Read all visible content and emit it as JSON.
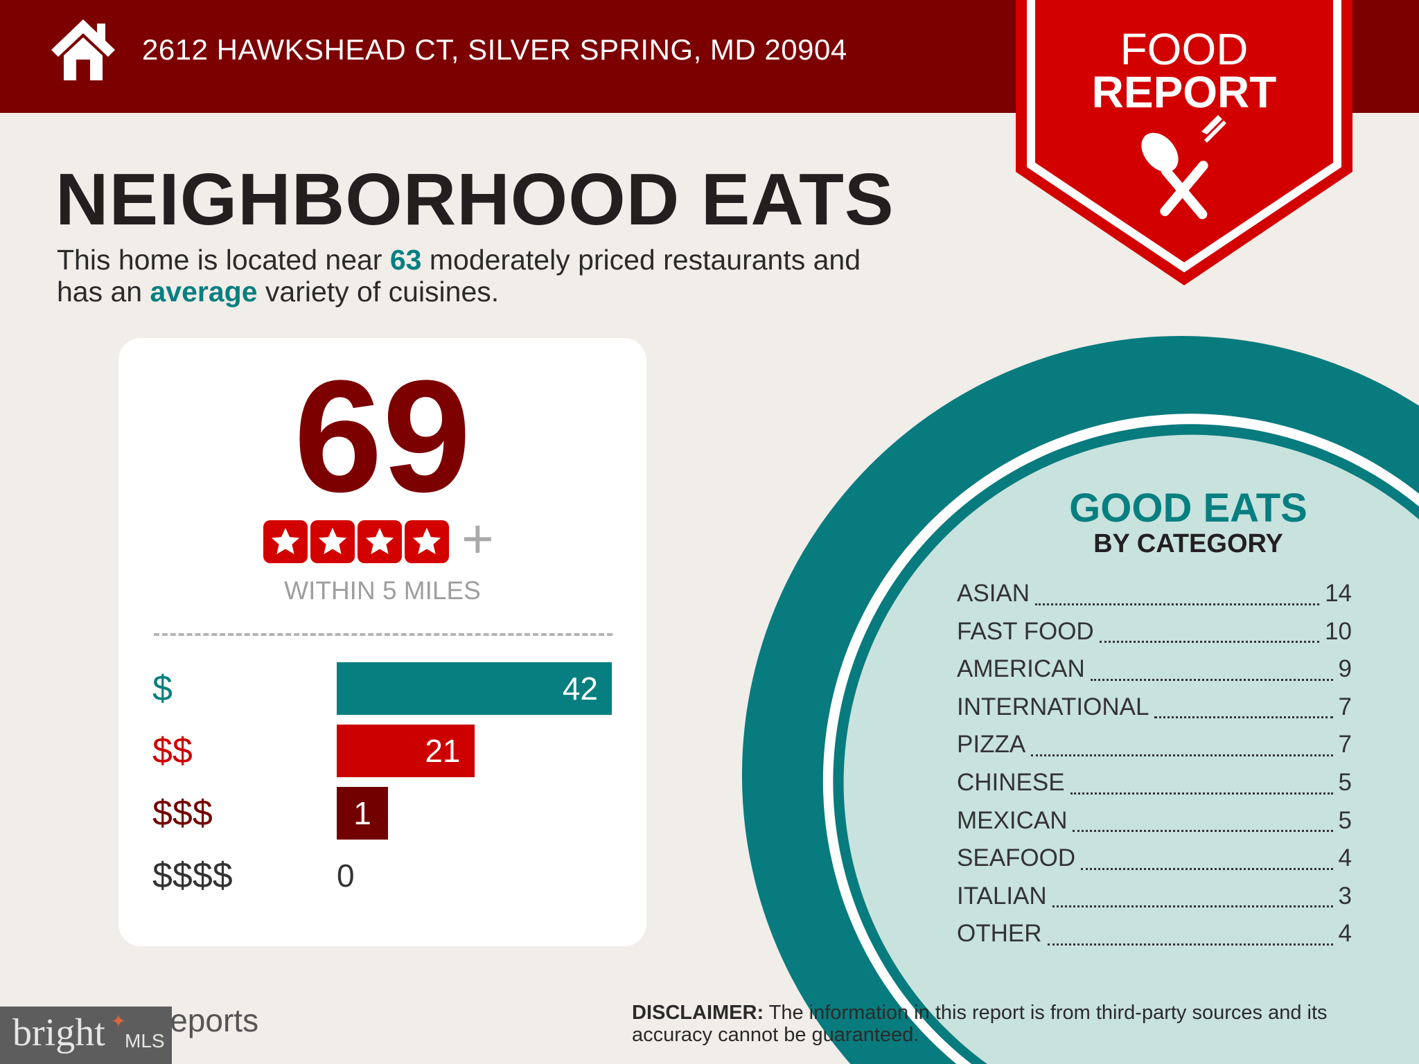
{
  "header": {
    "address": "2612 HAWKSHEAD CT, SILVER SPRING, MD 20904",
    "icon": "house-icon"
  },
  "banner": {
    "line1": "FOOD",
    "line2": "REPORT",
    "icon": "spoon-fork-icon"
  },
  "title": "NEIGHBORHOOD EATS",
  "subtitle": {
    "part1": "This home is located near ",
    "count": "63",
    "part2": " moderately priced restaurants and",
    "part3": "has an ",
    "variety": "average",
    "part4": " variety of cuisines."
  },
  "score": {
    "value": "69",
    "stars": 4,
    "plus": "+",
    "within": "WITHIN 5 MILES"
  },
  "price_levels": [
    {
      "label": "$",
      "value": 42,
      "color": "#077f80"
    },
    {
      "label": "$$",
      "value": 21,
      "color": "#cc0000"
    },
    {
      "label": "$$$",
      "value": 1,
      "color": "#730000"
    },
    {
      "label": "$$$$",
      "value": 0,
      "color": "#333333"
    }
  ],
  "categories": {
    "title": "GOOD EATS",
    "subtitle": "BY CATEGORY",
    "items": [
      {
        "name": "ASIAN",
        "count": "14"
      },
      {
        "name": "FAST FOOD",
        "count": "10"
      },
      {
        "name": "AMERICAN",
        "count": "9"
      },
      {
        "name": "INTERNATIONAL",
        "count": "7"
      },
      {
        "name": "PIZZA",
        "count": "7"
      },
      {
        "name": "CHINESE",
        "count": "5"
      },
      {
        "name": "MEXICAN",
        "count": "5"
      },
      {
        "name": "SEAFOOD",
        "count": "4"
      },
      {
        "name": "ITALIAN",
        "count": "3"
      },
      {
        "name": "OTHER",
        "count": "4"
      }
    ]
  },
  "footer": {
    "reports": "Reports",
    "disclaimer_label": "DISCLAIMER:",
    "disclaimer": " The information in this report is from third-party sources and its accuracy cannot be guaranteed.",
    "mls_logo": "bright MLS"
  },
  "colors": {
    "header": "#7c0000",
    "accent_teal": "#077f80",
    "accent_red": "#d30000",
    "plate": "#c8e2de"
  }
}
